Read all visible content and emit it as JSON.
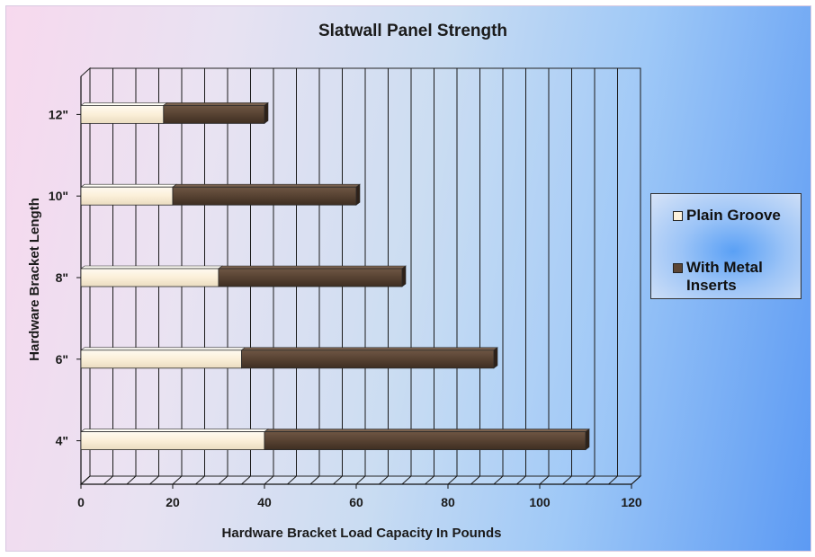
{
  "chart_data": {
    "type": "bar",
    "orientation": "horizontal",
    "stacked": true,
    "title": "Slatwall Panel Strength",
    "xlabel": "Hardware Bracket Load Capacity In Pounds",
    "ylabel": "Hardware Bracket Length",
    "categories": [
      "4\"",
      "6\"",
      "8\"",
      "10\"",
      "12\""
    ],
    "series": [
      {
        "name": "Plain Groove",
        "values": [
          40,
          35,
          30,
          20,
          18
        ],
        "color": "#fdf2dc"
      },
      {
        "name": "With Metal Inserts",
        "values": [
          70,
          55,
          40,
          40,
          22
        ],
        "color": "#5c4636"
      }
    ],
    "xlim": [
      0,
      120
    ],
    "xticks": [
      0,
      20,
      40,
      60,
      80,
      100,
      120
    ],
    "grid": true,
    "legend_position": "right"
  },
  "legend": {
    "item1": "Plain Groove",
    "item2_line1": "With Metal",
    "item2_line2": "Inserts"
  }
}
